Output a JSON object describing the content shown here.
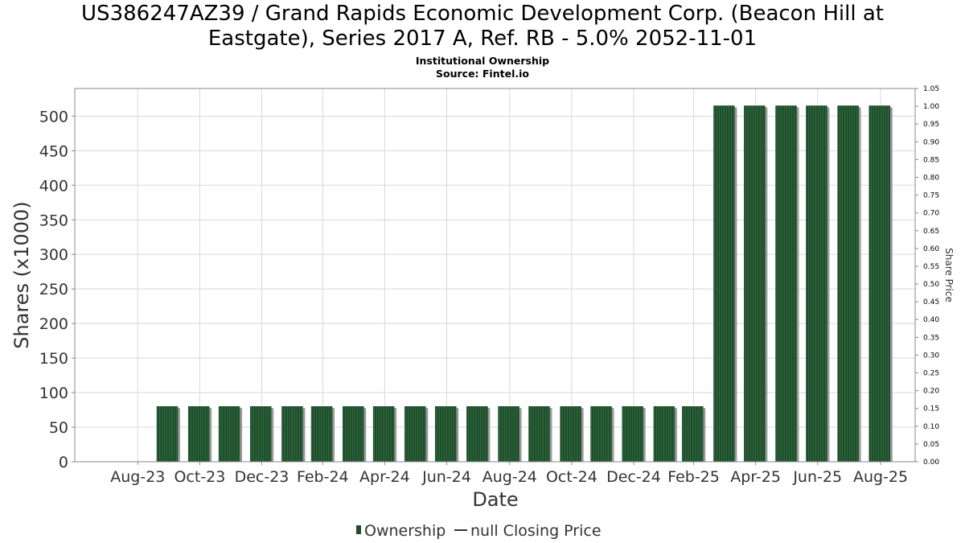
{
  "header": {
    "title_line1": "US386247AZ39 / Grand Rapids Economic Development Corp. (Beacon Hill at",
    "title_line2": "Eastgate), Series 2017 A, Ref. RB - 5.0% 2052-11-01",
    "subtitle_line1": "Institutional Ownership",
    "subtitle_line2": "Source: Fintel.io"
  },
  "colors": {
    "bar_fill": "#1f4d2c",
    "bar_stripe": "#2f6a3e",
    "bar_shadow": "#9a9a9a",
    "grid": "#d8d8d8",
    "plot_border": "#888888"
  },
  "chart_data": {
    "type": "bar",
    "xlabel": "Date",
    "ylabel": "Shares (x1000)",
    "y2label": "Share Price",
    "ylim": [
      0,
      540
    ],
    "y2lim": [
      0,
      1.05
    ],
    "yticks": [
      0,
      50,
      100,
      150,
      200,
      250,
      300,
      350,
      400,
      450,
      500
    ],
    "y2ticks": [
      "0.00",
      "0.05",
      "0.10",
      "0.15",
      "0.20",
      "0.25",
      "0.30",
      "0.35",
      "0.40",
      "0.45",
      "0.50",
      "0.55",
      "0.60",
      "0.65",
      "0.70",
      "0.75",
      "0.80",
      "0.85",
      "0.90",
      "0.95",
      "1.00",
      "1.05"
    ],
    "xtick_labels": [
      "Aug-23",
      "Oct-23",
      "Dec-23",
      "Feb-24",
      "Apr-24",
      "Jun-24",
      "Aug-24",
      "Oct-24",
      "Dec-24",
      "Feb-25",
      "Apr-25",
      "Jun-25",
      "Aug-25"
    ],
    "grid": true,
    "legend_position": "bottom",
    "series": [
      {
        "name": "Ownership",
        "x": [
          "2023-09-30",
          "2023-10-31",
          "2023-11-30",
          "2023-12-31",
          "2024-01-31",
          "2024-02-29",
          "2024-03-31",
          "2024-04-30",
          "2024-05-31",
          "2024-06-30",
          "2024-07-31",
          "2024-08-31",
          "2024-09-30",
          "2024-10-31",
          "2024-11-30",
          "2024-12-31",
          "2025-01-31",
          "2025-02-28",
          "2025-03-31",
          "2025-04-30",
          "2025-05-31",
          "2025-06-30",
          "2025-07-31",
          "2025-08-31"
        ],
        "values": [
          80,
          80,
          80,
          80,
          80,
          80,
          80,
          80,
          80,
          80,
          80,
          80,
          80,
          80,
          80,
          80,
          80,
          80,
          515,
          515,
          515,
          515,
          515,
          515
        ]
      },
      {
        "name": "null Closing Price",
        "values": []
      }
    ]
  },
  "legend": {
    "ownership_label": "Ownership",
    "price_label": "null Closing Price"
  }
}
